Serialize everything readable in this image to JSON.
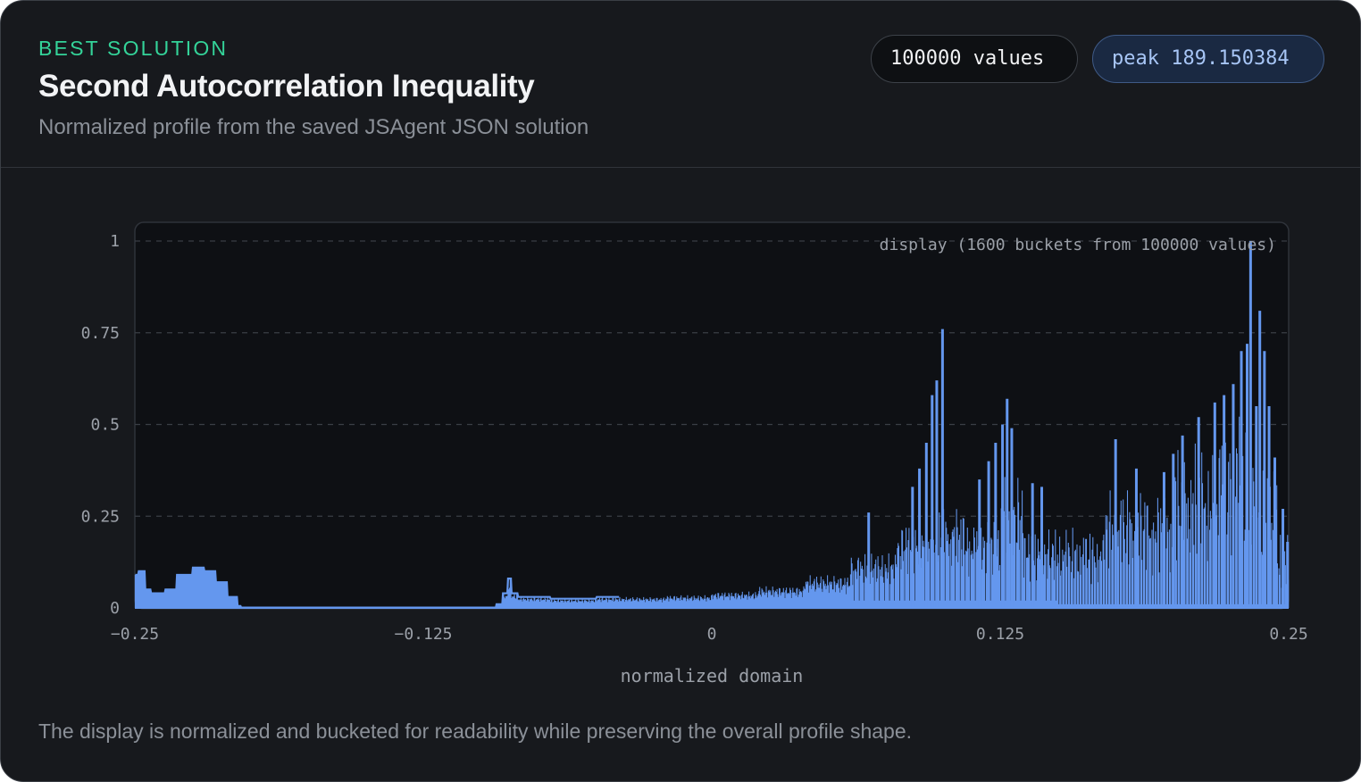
{
  "header": {
    "eyebrow": "BEST SOLUTION",
    "title": "Second Autocorrelation Inequality",
    "subtitle": "Normalized profile from the saved JSAgent JSON solution"
  },
  "badges": {
    "count": "100000 values",
    "peak": "peak 189.150384"
  },
  "footnote": "The display is normalized and bucketed for readability while preserving the overall profile shape.",
  "colors": {
    "accent_green": "#34d399",
    "bar": "#6497ee",
    "plot_bg": "#0e1014",
    "card_bg": "#17191d"
  },
  "chart_data": {
    "type": "bar",
    "title": "",
    "xlabel": "normalized domain",
    "ylabel": "",
    "xlim": [
      -0.25,
      0.25
    ],
    "ylim": [
      0,
      1
    ],
    "grid": true,
    "annotation": "display (1600 buckets from 100000 values)",
    "x_ticks": [
      -0.25,
      -0.125,
      0,
      0.125,
      0.25
    ],
    "x_tick_labels": [
      "−0.25",
      "−0.125",
      "0",
      "0.125",
      "0.25"
    ],
    "y_ticks": [
      0,
      0.25,
      0.5,
      0.75,
      1
    ],
    "y_tick_labels": [
      "0",
      "0.25",
      "0.5",
      "0.75",
      "1"
    ],
    "series": [
      {
        "name": "normalized profile",
        "bucket_count": 1600,
        "segments": [
          {
            "from": -0.25,
            "to": -0.2485,
            "value": 0.09
          },
          {
            "from": -0.2485,
            "to": -0.2455,
            "value": 0.1
          },
          {
            "from": -0.2455,
            "to": -0.243,
            "value": 0.05
          },
          {
            "from": -0.243,
            "to": -0.237,
            "value": 0.04
          },
          {
            "from": -0.237,
            "to": -0.232,
            "value": 0.05
          },
          {
            "from": -0.232,
            "to": -0.225,
            "value": 0.09
          },
          {
            "from": -0.225,
            "to": -0.22,
            "value": 0.11
          },
          {
            "from": -0.22,
            "to": -0.215,
            "value": 0.1
          },
          {
            "from": -0.215,
            "to": -0.21,
            "value": 0.07
          },
          {
            "from": -0.21,
            "to": -0.2055,
            "value": 0.03
          },
          {
            "from": -0.2055,
            "to": -0.204,
            "value": 0.005
          },
          {
            "from": -0.204,
            "to": -0.0935,
            "value": 0.001
          },
          {
            "from": -0.0935,
            "to": -0.0905,
            "value": 0.01
          },
          {
            "from": -0.0905,
            "to": -0.0885,
            "value": 0.04
          },
          {
            "from": -0.0885,
            "to": -0.087,
            "value": 0.08
          },
          {
            "from": -0.087,
            "to": -0.084,
            "value": 0.04
          },
          {
            "from": -0.084,
            "to": -0.07,
            "value": 0.03
          },
          {
            "from": -0.07,
            "to": -0.05,
            "value": 0.025
          },
          {
            "from": -0.05,
            "to": -0.02,
            "value": 0.03
          },
          {
            "from": -0.02,
            "to": 0.0,
            "value": 0.035
          },
          {
            "from": 0.0,
            "to": 0.02,
            "value": 0.045
          },
          {
            "from": 0.02,
            "to": 0.04,
            "value": 0.06
          },
          {
            "from": 0.04,
            "to": 0.06,
            "value": 0.09
          },
          {
            "from": 0.06,
            "to": 0.08,
            "value": 0.15
          },
          {
            "from": 0.08,
            "to": 0.095,
            "value": 0.24
          },
          {
            "from": 0.095,
            "to": 0.11,
            "value": 0.28
          },
          {
            "from": 0.11,
            "to": 0.125,
            "value": 0.24
          },
          {
            "from": 0.125,
            "to": 0.135,
            "value": 0.37
          },
          {
            "from": 0.135,
            "to": 0.15,
            "value": 0.22
          },
          {
            "from": 0.15,
            "to": 0.17,
            "value": 0.22
          },
          {
            "from": 0.17,
            "to": 0.2,
            "value": 0.33
          },
          {
            "from": 0.2,
            "to": 0.22,
            "value": 0.45
          },
          {
            "from": 0.22,
            "to": 0.235,
            "value": 0.55
          },
          {
            "from": 0.235,
            "to": 0.245,
            "value": 0.4
          },
          {
            "from": 0.245,
            "to": 0.25,
            "value": 0.22
          }
        ],
        "spikes": [
          {
            "x": 0.1,
            "value": 0.76
          },
          {
            "x": 0.0975,
            "value": 0.62
          },
          {
            "x": 0.0955,
            "value": 0.58
          },
          {
            "x": 0.093,
            "value": 0.45
          },
          {
            "x": 0.09,
            "value": 0.38
          },
          {
            "x": 0.087,
            "value": 0.33
          },
          {
            "x": 0.068,
            "value": 0.26
          },
          {
            "x": 0.128,
            "value": 0.57
          },
          {
            "x": 0.126,
            "value": 0.5
          },
          {
            "x": 0.13,
            "value": 0.49
          },
          {
            "x": 0.123,
            "value": 0.45
          },
          {
            "x": 0.12,
            "value": 0.4
          },
          {
            "x": 0.116,
            "value": 0.35
          },
          {
            "x": 0.139,
            "value": 0.34
          },
          {
            "x": 0.143,
            "value": 0.33
          },
          {
            "x": 0.175,
            "value": 0.46
          },
          {
            "x": 0.184,
            "value": 0.38
          },
          {
            "x": 0.196,
            "value": 0.37
          },
          {
            "x": 0.2,
            "value": 0.42
          },
          {
            "x": 0.204,
            "value": 0.47
          },
          {
            "x": 0.211,
            "value": 0.52
          },
          {
            "x": 0.218,
            "value": 0.56
          },
          {
            "x": 0.222,
            "value": 0.58
          },
          {
            "x": 0.226,
            "value": 0.61
          },
          {
            "x": 0.2295,
            "value": 0.7
          },
          {
            "x": 0.2335,
            "value": 1.0
          },
          {
            "x": 0.232,
            "value": 0.72
          },
          {
            "x": 0.236,
            "value": 0.55
          },
          {
            "x": 0.2375,
            "value": 0.81
          },
          {
            "x": 0.2395,
            "value": 0.7
          },
          {
            "x": 0.2415,
            "value": 0.55
          },
          {
            "x": 0.244,
            "value": 0.41
          },
          {
            "x": 0.2475,
            "value": 0.27
          },
          {
            "x": 0.2495,
            "value": 0.18
          }
        ]
      }
    ]
  }
}
